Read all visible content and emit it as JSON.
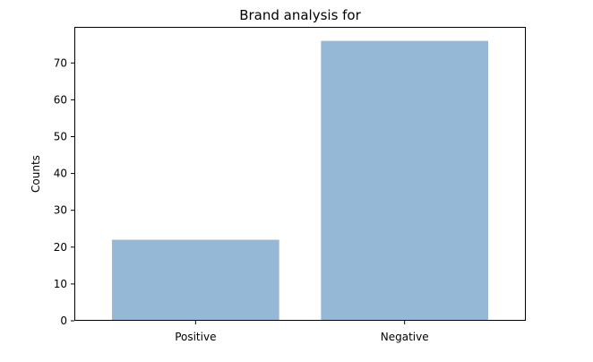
{
  "chart_data": {
    "type": "bar",
    "title": "Brand analysis for",
    "xlabel": "",
    "ylabel": "Counts",
    "categories": [
      "Positive",
      "Negative"
    ],
    "values": [
      22,
      76
    ],
    "ylim": [
      0,
      79.8
    ],
    "yticks": [
      0,
      10,
      20,
      30,
      40,
      50,
      60,
      70
    ],
    "grid": false,
    "legend": "none",
    "colors": {
      "bar": "#94b8d6",
      "axis": "#000000",
      "background": "#ffffff"
    }
  }
}
